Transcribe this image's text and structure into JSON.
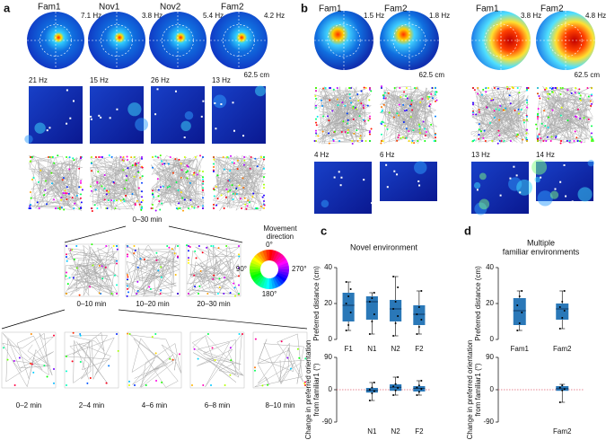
{
  "panel_a": {
    "label": "a",
    "polar_titles": [
      "Fam1",
      "Nov1",
      "Nov2",
      "Fam2"
    ],
    "polar_rates": [
      "7.1 Hz",
      "3.8 Hz",
      "5.4 Hz",
      "4.2 Hz"
    ],
    "scale": "62.5 cm",
    "map_rates": [
      "21 Hz",
      "15 Hz",
      "26 Hz",
      "13 Hz"
    ],
    "total_time": "0–30 min",
    "sub_times": [
      "0–10 min",
      "10–20 min",
      "20–30 min"
    ],
    "fine_times": [
      "0–2 min",
      "2–4 min",
      "4–6 min",
      "6–8 min",
      "8–10 min"
    ]
  },
  "wheel": {
    "title": [
      "Movement",
      "direction"
    ],
    "labels": {
      "top": "0°",
      "left": "90°",
      "bottom": "180°",
      "right": "270°"
    }
  },
  "panel_b": {
    "label": "b",
    "polar_titles": [
      "Fam1",
      "Fam2",
      "Fam1",
      "Fam2"
    ],
    "polar_rates": [
      "1.5 Hz",
      "1.8 Hz",
      "3.8 Hz",
      "4.8 Hz"
    ],
    "scales": [
      "62.5 cm",
      "62.5 cm"
    ],
    "map_rates": [
      "4 Hz",
      "6 Hz",
      "13 Hz",
      "14 Hz"
    ]
  },
  "panel_c": {
    "label": "c"
  },
  "panel_d": {
    "label": "d"
  },
  "chart_data": [
    {
      "type": "box",
      "title": [
        "Novel environment"
      ],
      "ylabel": [
        "Preferred distance (cm)"
      ],
      "categories": [
        "F1",
        "N1",
        "N2",
        "F2"
      ],
      "color": "#2a78b8",
      "ylim": [
        0,
        40
      ],
      "yticks": [
        0,
        20,
        40
      ],
      "low": [
        5,
        3,
        2,
        3
      ],
      "q1": [
        10,
        11,
        10,
        8
      ],
      "median": [
        19,
        21,
        17,
        14
      ],
      "q3": [
        26,
        24,
        22,
        19
      ],
      "high": [
        32,
        26,
        35,
        27
      ],
      "points": [
        [
          5,
          8,
          15,
          20,
          24,
          28,
          32
        ],
        [
          3,
          10,
          14,
          21,
          23,
          26
        ],
        [
          2,
          9,
          13,
          17,
          21,
          29,
          35
        ],
        [
          3,
          7,
          11,
          14,
          18,
          27
        ]
      ]
    },
    {
      "type": "box",
      "ylabel": [
        "Change in preferred orientation",
        "from familiar1 (°)"
      ],
      "categories": [
        null,
        "N1",
        "N2",
        "F2"
      ],
      "color": "#2a78b8",
      "ylim": [
        -90,
        90
      ],
      "yticks": [
        -90,
        0,
        90
      ],
      "zero_line": {
        "value": 0,
        "color": "#e06070"
      },
      "low": [
        null,
        -30,
        -15,
        -15
      ],
      "q1": [
        null,
        -8,
        -3,
        -5
      ],
      "median": [
        null,
        -2,
        7,
        4
      ],
      "q3": [
        null,
        5,
        15,
        10
      ],
      "high": [
        null,
        20,
        35,
        25
      ],
      "points": [
        null,
        [
          -30,
          -10,
          -4,
          0,
          6,
          20
        ],
        [
          -15,
          -2,
          5,
          9,
          16,
          35
        ],
        [
          -15,
          -6,
          2,
          6,
          12,
          25
        ]
      ]
    },
    {
      "type": "box",
      "title": [
        "Multiple",
        "familiar environments"
      ],
      "ylabel": [
        "Preferred distance (cm)"
      ],
      "categories": [
        "Fam1",
        "Fam2"
      ],
      "color": "#2a78b8",
      "ylim": [
        0,
        40
      ],
      "yticks": [
        0,
        20,
        40
      ],
      "low": [
        5,
        6
      ],
      "q1": [
        8,
        11
      ],
      "median": [
        16,
        17
      ],
      "q3": [
        23,
        20
      ],
      "high": [
        27,
        27
      ],
      "points": [
        [
          5,
          9,
          15,
          19,
          24,
          27
        ],
        [
          6,
          12,
          16,
          18,
          21,
          27
        ]
      ]
    },
    {
      "type": "box",
      "ylabel": [
        "Change in preferred orientation",
        "from familiar1 (°)"
      ],
      "categories": [
        null,
        "Fam2"
      ],
      "color": "#2a78b8",
      "ylim": [
        -90,
        90
      ],
      "yticks": [
        -90,
        0,
        90
      ],
      "zero_line": {
        "value": 0,
        "color": "#e06070"
      },
      "low": [
        null,
        -35
      ],
      "q1": [
        null,
        -3
      ],
      "median": [
        null,
        3
      ],
      "q3": [
        null,
        10
      ],
      "high": [
        null,
        15
      ],
      "points": [
        null,
        [
          -35,
          -2,
          2,
          6,
          12
        ]
      ]
    }
  ]
}
